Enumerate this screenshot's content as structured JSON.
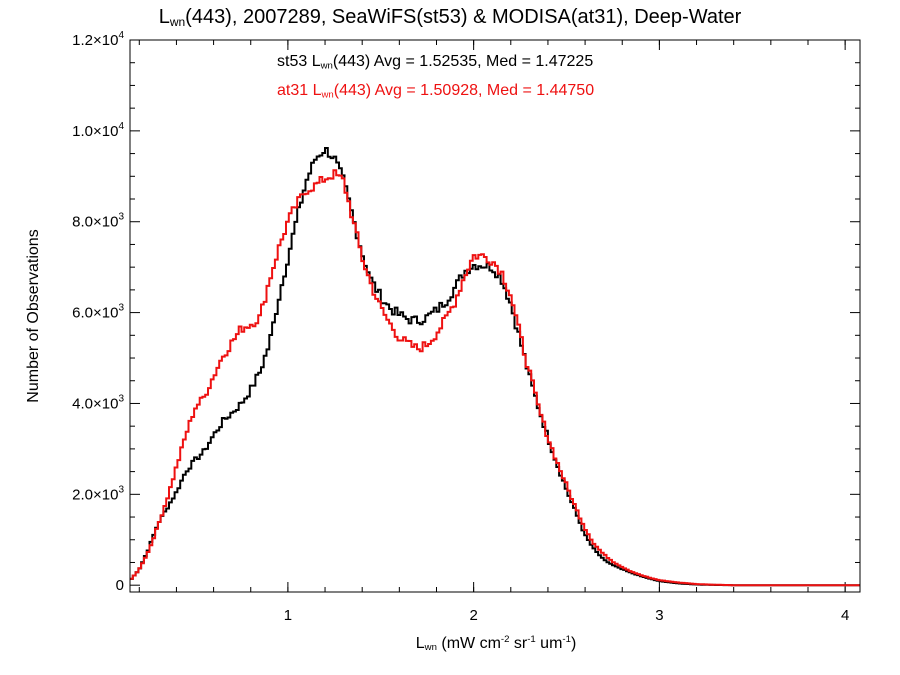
{
  "chart_data": {
    "type": "line",
    "title": {
      "main": "L",
      "sub": "wn",
      "rest": "(443), 2007289, SeaWiFS(st53) & MODISA(at31), Deep-Water"
    },
    "xlabel": {
      "main": "L",
      "sub": "wn",
      "units_a": "(mW cm",
      "exp_a": "-2",
      "units_b": " sr",
      "exp_b": "-1",
      "units_c": " um",
      "exp_c": "-1",
      "units_d": ")"
    },
    "ylabel": "Number of Observations",
    "xlim": [
      0.15,
      4.08
    ],
    "ylim": [
      -150,
      12000
    ],
    "x_ticks": [
      {
        "value": 1,
        "label": "1"
      },
      {
        "value": 2,
        "label": "2"
      },
      {
        "value": 3,
        "label": "3"
      },
      {
        "value": 4,
        "label": "4"
      }
    ],
    "y_ticks": [
      {
        "value": 0,
        "mantissa": "0",
        "exp": ""
      },
      {
        "value": 2000,
        "mantissa": "2.0×10",
        "exp": "3"
      },
      {
        "value": 4000,
        "mantissa": "4.0×10",
        "exp": "3"
      },
      {
        "value": 6000,
        "mantissa": "6.0×10",
        "exp": "3"
      },
      {
        "value": 8000,
        "mantissa": "8.0×10",
        "exp": "3"
      },
      {
        "value": 10000,
        "mantissa": "1.0×10",
        "exp": "4"
      },
      {
        "value": 12000,
        "mantissa": "1.2×10",
        "exp": "4"
      }
    ],
    "legend": [
      {
        "prefix": "st53 L",
        "sub": "wn",
        "rest": "(443) Avg = 1.52535, Med = 1.47225",
        "color": "#000000"
      },
      {
        "prefix": "at31 L",
        "sub": "wn",
        "rest": "(443) Avg = 1.50928, Med = 1.44750",
        "color": "#ee1111"
      }
    ],
    "series": [
      {
        "name": "st53",
        "color": "#000000",
        "x": [
          0.15,
          0.2,
          0.25,
          0.3,
          0.35,
          0.4,
          0.45,
          0.5,
          0.55,
          0.6,
          0.65,
          0.7,
          0.75,
          0.8,
          0.85,
          0.9,
          0.95,
          1.0,
          1.05,
          1.1,
          1.15,
          1.2,
          1.25,
          1.3,
          1.35,
          1.4,
          1.45,
          1.5,
          1.55,
          1.6,
          1.65,
          1.7,
          1.75,
          1.8,
          1.85,
          1.9,
          1.95,
          2.0,
          2.05,
          2.1,
          2.15,
          2.2,
          2.25,
          2.3,
          2.35,
          2.4,
          2.45,
          2.5,
          2.55,
          2.6,
          2.65,
          2.7,
          2.75,
          2.8,
          2.85,
          2.9,
          2.95,
          3.0,
          3.1,
          3.2,
          3.3,
          3.4,
          3.5,
          3.6,
          3.7,
          3.8,
          3.9,
          4.0,
          4.08
        ],
        "y": [
          100,
          350,
          800,
          1350,
          1700,
          2050,
          2500,
          2750,
          2950,
          3300,
          3600,
          3800,
          4000,
          4300,
          4700,
          5300,
          6300,
          7200,
          8100,
          8900,
          9400,
          9600,
          9400,
          8900,
          8100,
          7300,
          6700,
          6350,
          6100,
          5950,
          5850,
          5820,
          5900,
          6050,
          6250,
          6550,
          6900,
          7050,
          7050,
          7000,
          6750,
          6200,
          5400,
          4600,
          3900,
          3250,
          2650,
          2100,
          1600,
          1100,
          780,
          560,
          440,
          350,
          270,
          200,
          140,
          90,
          40,
          15,
          5,
          0,
          0,
          0,
          0,
          0,
          0,
          0,
          0
        ]
      },
      {
        "name": "at31",
        "color": "#ee1111",
        "x": [
          0.15,
          0.2,
          0.25,
          0.3,
          0.35,
          0.4,
          0.45,
          0.5,
          0.55,
          0.6,
          0.65,
          0.7,
          0.75,
          0.8,
          0.85,
          0.9,
          0.95,
          1.0,
          1.05,
          1.1,
          1.15,
          1.2,
          1.25,
          1.3,
          1.35,
          1.4,
          1.45,
          1.5,
          1.55,
          1.6,
          1.65,
          1.7,
          1.75,
          1.8,
          1.85,
          1.9,
          1.95,
          2.0,
          2.05,
          2.1,
          2.15,
          2.2,
          2.25,
          2.3,
          2.35,
          2.4,
          2.45,
          2.5,
          2.55,
          2.6,
          2.65,
          2.7,
          2.75,
          2.8,
          2.85,
          2.9,
          2.95,
          3.0,
          3.1,
          3.2,
          3.3,
          3.4,
          3.5,
          3.6,
          3.7,
          3.8,
          3.9,
          4.0,
          4.08
        ],
        "y": [
          100,
          350,
          750,
          1300,
          1900,
          2600,
          3300,
          3900,
          4150,
          4600,
          5050,
          5350,
          5650,
          5750,
          5900,
          6700,
          7400,
          8000,
          8400,
          8700,
          8800,
          8950,
          9050,
          8900,
          8050,
          7200,
          6600,
          6100,
          5750,
          5450,
          5300,
          5200,
          5300,
          5550,
          5850,
          6250,
          6800,
          7250,
          7250,
          7150,
          6900,
          6400,
          5500,
          4700,
          3900,
          3250,
          2700,
          2200,
          1700,
          1250,
          900,
          680,
          520,
          400,
          300,
          220,
          160,
          110,
          60,
          25,
          10,
          0,
          0,
          0,
          0,
          0,
          0,
          0,
          0
        ]
      }
    ]
  }
}
